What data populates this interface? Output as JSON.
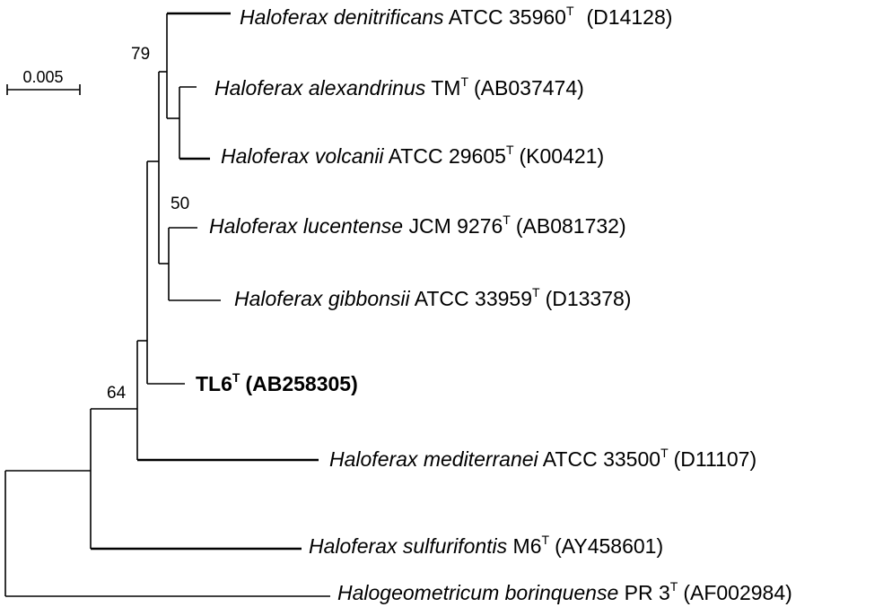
{
  "scale_bar": {
    "label": "0.005"
  },
  "bootstrap": {
    "b79": "79",
    "b50": "50",
    "b64": "64"
  },
  "taxa": {
    "denitrificans": {
      "genus": "Haloferax",
      "species": "denitrificans",
      "strain": "ATCC 35960",
      "type": "T",
      "accession": "(D14128)"
    },
    "alexandrinus": {
      "genus": "Haloferax",
      "species": "alexandrinus",
      "strain": "TM",
      "type": "T",
      "accession": "(AB037474)"
    },
    "volcanii": {
      "genus": "Haloferax",
      "species": "volcanii",
      "strain": "ATCC 29605",
      "type": "T",
      "accession": "(K00421)"
    },
    "lucentense": {
      "genus": "Haloferax",
      "species": "lucentense",
      "strain": "JCM 9276",
      "type": "T",
      "accession": "(AB081732)"
    },
    "gibbonsii": {
      "genus": "Haloferax",
      "species": "gibbonsii",
      "strain": "ATCC 33959",
      "type": "T",
      "accession": "(D13378)"
    },
    "tl6": {
      "strain": "TL6",
      "type": "T",
      "accession": "(AB258305)"
    },
    "mediterranei": {
      "genus": "Haloferax",
      "species": "mediterranei",
      "strain": "ATCC 33500",
      "type": "T",
      "accession": "(D11107)"
    },
    "sulfurifontis": {
      "genus": "Haloferax",
      "species": "sulfurifontis",
      "strain": "M6",
      "type": "T",
      "accession": "(AY458601)"
    },
    "borinquense": {
      "genus": "Halogeometricum",
      "species": "borinquense",
      "strain": "PR 3",
      "type": "T",
      "accession": "(AF002984)"
    }
  }
}
